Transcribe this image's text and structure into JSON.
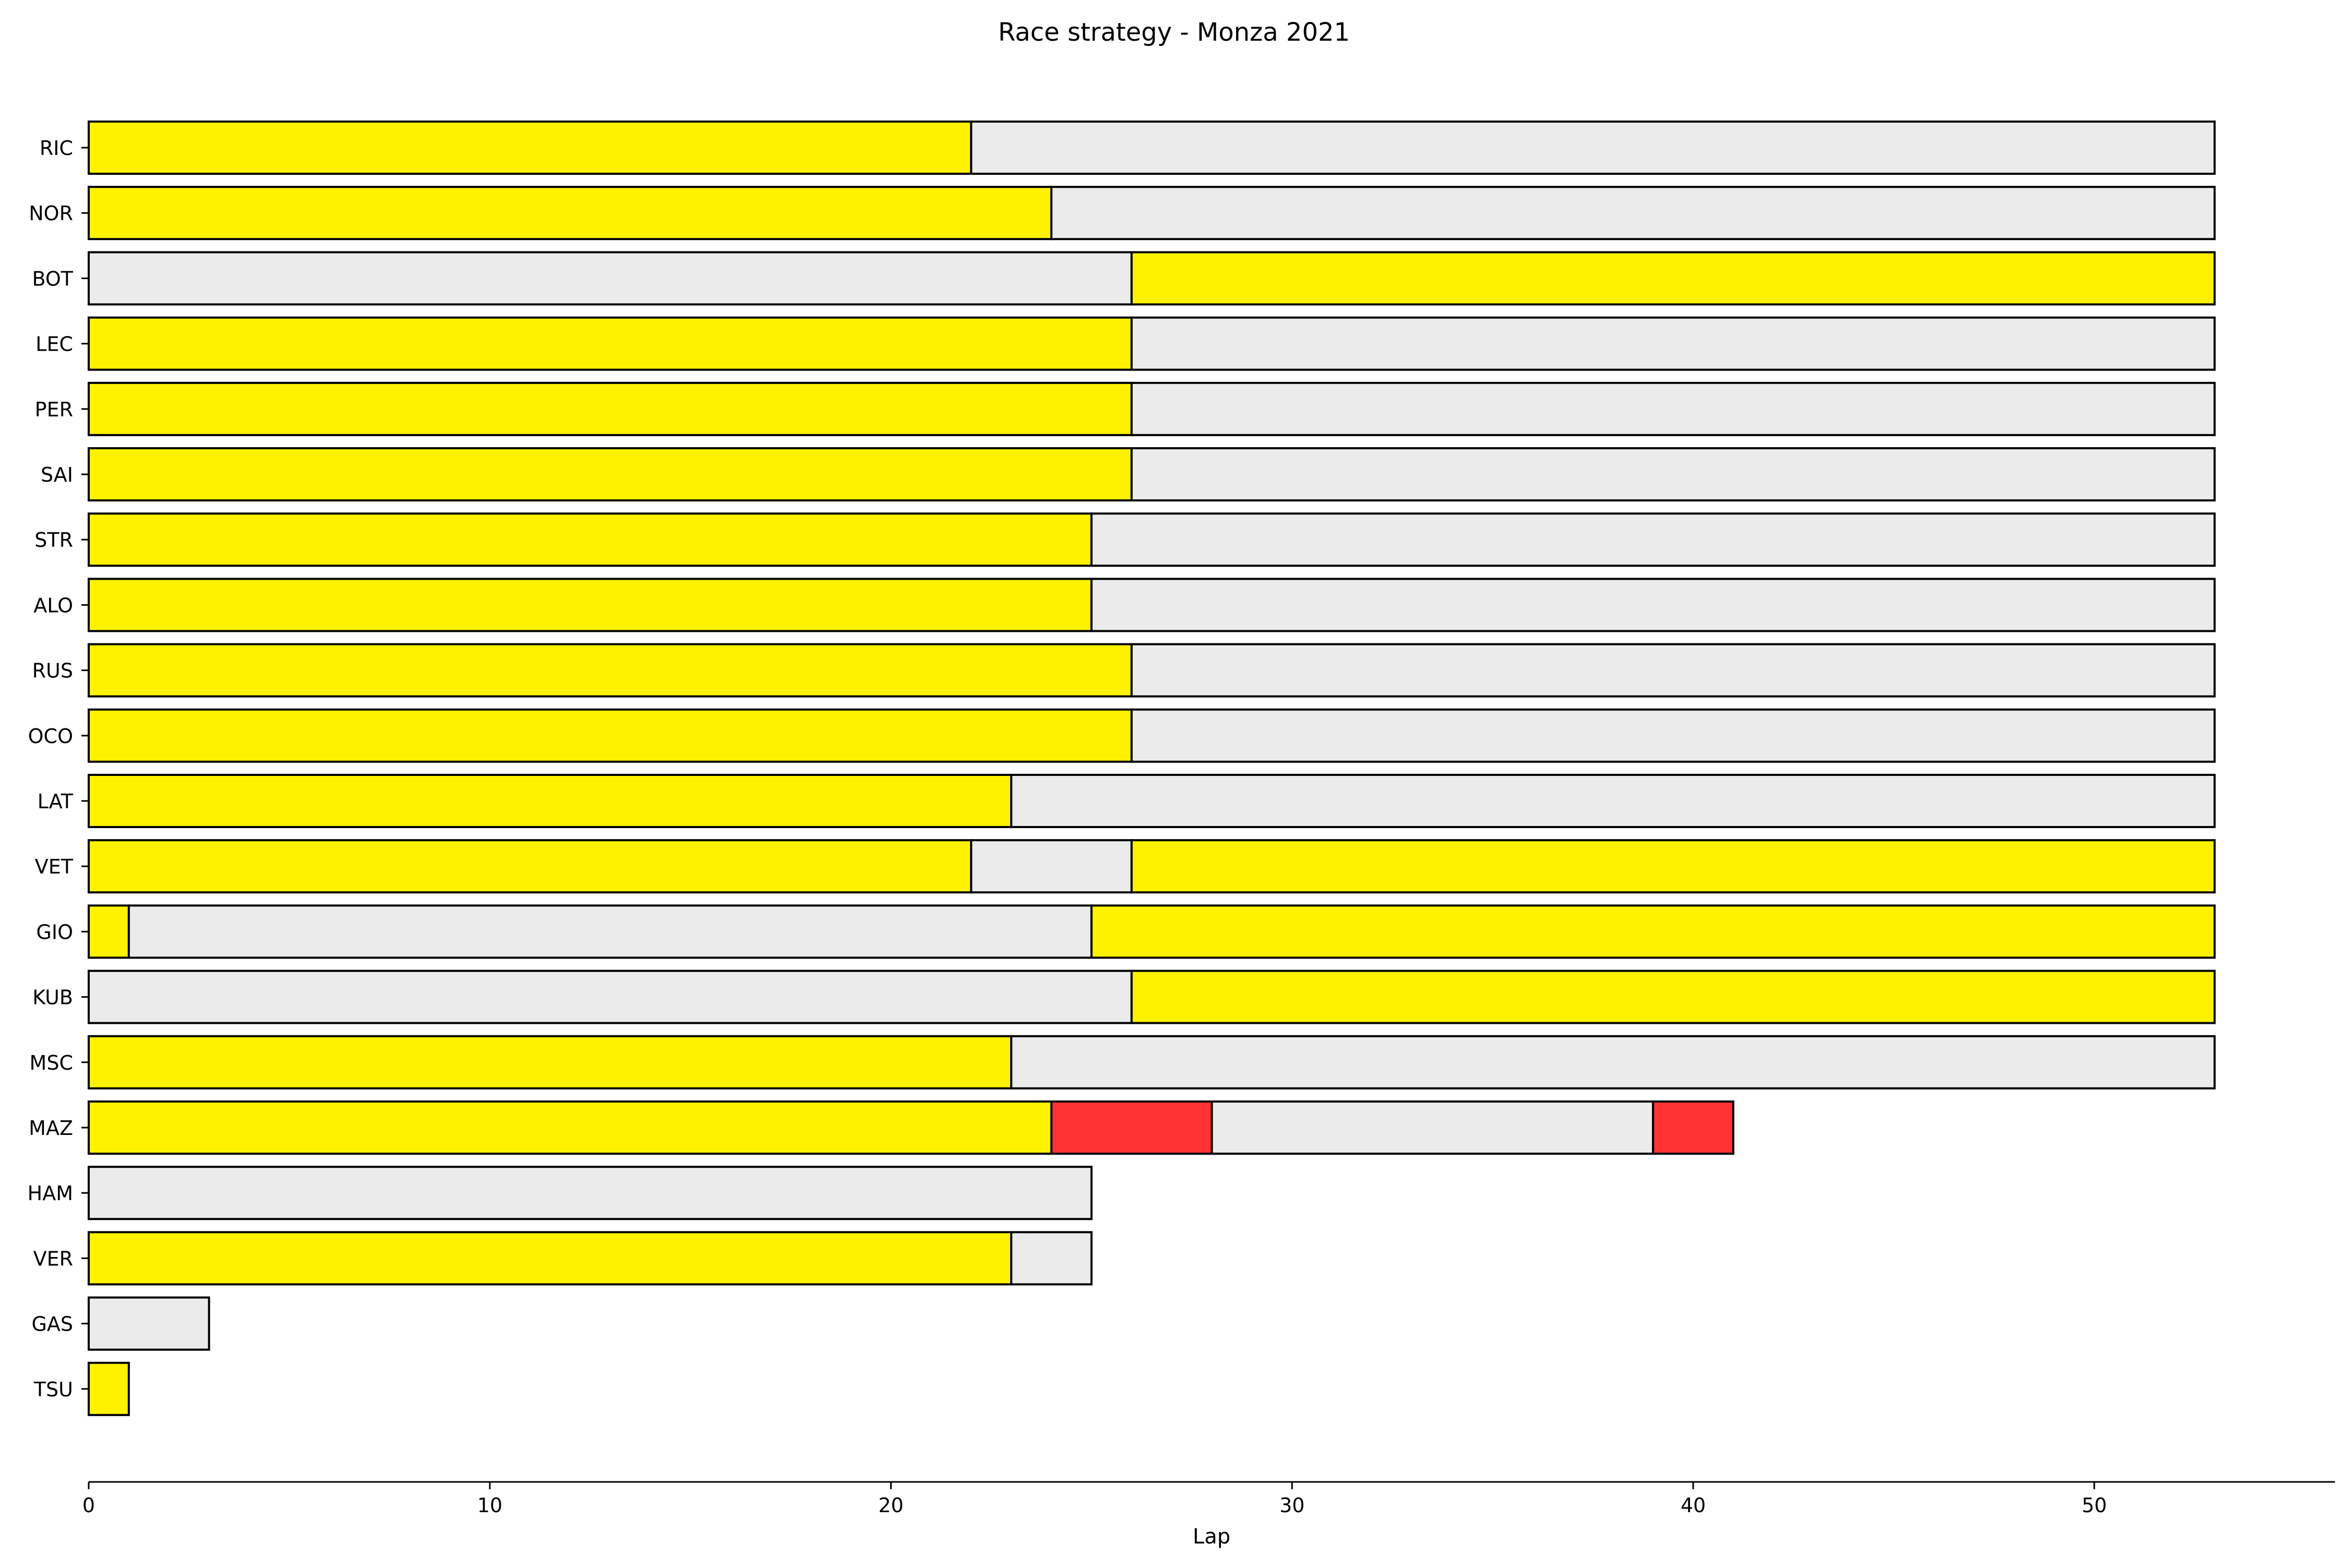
{
  "chart_data": {
    "type": "bar",
    "orientation": "horizontal",
    "stacked": true,
    "title": "Race strategy - Monza 2021",
    "xlabel": "Lap",
    "ylabel": "",
    "xlim": [
      0,
      56
    ],
    "xticks": [
      0,
      10,
      20,
      30,
      40,
      50
    ],
    "grid": false,
    "legend": "none",
    "compound_colors": {
      "MEDIUM": "#fff200",
      "HARD": "#ebebeb",
      "SOFT": "#ff3333"
    },
    "drivers": [
      {
        "name": "RIC",
        "stints": [
          {
            "compound": "MEDIUM",
            "laps": 22
          },
          {
            "compound": "HARD",
            "laps": 31
          }
        ]
      },
      {
        "name": "NOR",
        "stints": [
          {
            "compound": "MEDIUM",
            "laps": 24
          },
          {
            "compound": "HARD",
            "laps": 29
          }
        ]
      },
      {
        "name": "BOT",
        "stints": [
          {
            "compound": "HARD",
            "laps": 26
          },
          {
            "compound": "MEDIUM",
            "laps": 27
          }
        ]
      },
      {
        "name": "LEC",
        "stints": [
          {
            "compound": "MEDIUM",
            "laps": 26
          },
          {
            "compound": "HARD",
            "laps": 27
          }
        ]
      },
      {
        "name": "PER",
        "stints": [
          {
            "compound": "MEDIUM",
            "laps": 26
          },
          {
            "compound": "HARD",
            "laps": 27
          }
        ]
      },
      {
        "name": "SAI",
        "stints": [
          {
            "compound": "MEDIUM",
            "laps": 26
          },
          {
            "compound": "HARD",
            "laps": 27
          }
        ]
      },
      {
        "name": "STR",
        "stints": [
          {
            "compound": "MEDIUM",
            "laps": 25
          },
          {
            "compound": "HARD",
            "laps": 28
          }
        ]
      },
      {
        "name": "ALO",
        "stints": [
          {
            "compound": "MEDIUM",
            "laps": 25
          },
          {
            "compound": "HARD",
            "laps": 28
          }
        ]
      },
      {
        "name": "RUS",
        "stints": [
          {
            "compound": "MEDIUM",
            "laps": 26
          },
          {
            "compound": "HARD",
            "laps": 27
          }
        ]
      },
      {
        "name": "OCO",
        "stints": [
          {
            "compound": "MEDIUM",
            "laps": 26
          },
          {
            "compound": "HARD",
            "laps": 27
          }
        ]
      },
      {
        "name": "LAT",
        "stints": [
          {
            "compound": "MEDIUM",
            "laps": 23
          },
          {
            "compound": "HARD",
            "laps": 30
          }
        ]
      },
      {
        "name": "VET",
        "stints": [
          {
            "compound": "MEDIUM",
            "laps": 22
          },
          {
            "compound": "HARD",
            "laps": 4
          },
          {
            "compound": "MEDIUM",
            "laps": 27
          }
        ]
      },
      {
        "name": "GIO",
        "stints": [
          {
            "compound": "MEDIUM",
            "laps": 1
          },
          {
            "compound": "HARD",
            "laps": 24
          },
          {
            "compound": "MEDIUM",
            "laps": 28
          }
        ]
      },
      {
        "name": "KUB",
        "stints": [
          {
            "compound": "HARD",
            "laps": 26
          },
          {
            "compound": "MEDIUM",
            "laps": 27
          }
        ]
      },
      {
        "name": "MSC",
        "stints": [
          {
            "compound": "MEDIUM",
            "laps": 23
          },
          {
            "compound": "HARD",
            "laps": 30
          }
        ]
      },
      {
        "name": "MAZ",
        "stints": [
          {
            "compound": "MEDIUM",
            "laps": 24
          },
          {
            "compound": "SOFT",
            "laps": 4
          },
          {
            "compound": "HARD",
            "laps": 11
          },
          {
            "compound": "SOFT",
            "laps": 2
          }
        ]
      },
      {
        "name": "HAM",
        "stints": [
          {
            "compound": "HARD",
            "laps": 25
          }
        ]
      },
      {
        "name": "VER",
        "stints": [
          {
            "compound": "MEDIUM",
            "laps": 23
          },
          {
            "compound": "HARD",
            "laps": 2
          }
        ]
      },
      {
        "name": "GAS",
        "stints": [
          {
            "compound": "HARD",
            "laps": 3
          }
        ]
      },
      {
        "name": "TSU",
        "stints": [
          {
            "compound": "MEDIUM",
            "laps": 1
          }
        ]
      }
    ]
  }
}
